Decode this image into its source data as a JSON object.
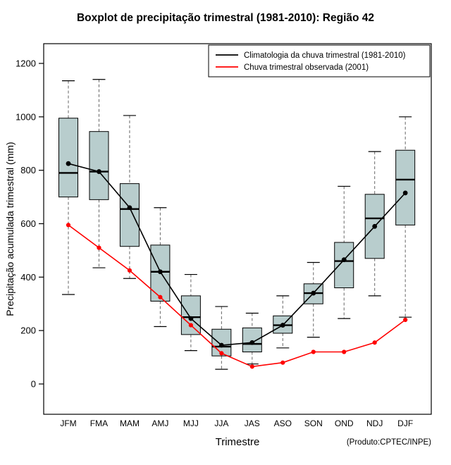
{
  "chart_data": {
    "type": "boxplot",
    "title": "Boxplot de precipitação trimestral (1981-2010): Região 42",
    "xlabel": "Trimestre",
    "ylabel": "Precipitação acumulada trimestral (mm)",
    "annotation": "(Produto:CPTEC/INPE)",
    "categories": [
      "JFM",
      "FMA",
      "MAM",
      "AMJ",
      "MJJ",
      "JJA",
      "JAS",
      "ASO",
      "SON",
      "OND",
      "NDJ",
      "DJF"
    ],
    "yticks": [
      0,
      200,
      400,
      600,
      800,
      1000,
      1200
    ],
    "ylim": [
      0,
      1200
    ],
    "grid": false,
    "legend_position": "top-right",
    "box_fill": "#b8cdcd",
    "box_border": "#000000",
    "whisker_color": "#666666",
    "boxes": [
      {
        "low": 335,
        "q1": 700,
        "median": 790,
        "q3": 995,
        "high": 1135
      },
      {
        "low": 435,
        "q1": 690,
        "median": 795,
        "q3": 945,
        "high": 1140
      },
      {
        "low": 395,
        "q1": 515,
        "median": 655,
        "q3": 750,
        "high": 1005
      },
      {
        "low": 215,
        "q1": 310,
        "median": 420,
        "q3": 520,
        "high": 660
      },
      {
        "low": 125,
        "q1": 185,
        "median": 250,
        "q3": 330,
        "high": 410
      },
      {
        "low": 55,
        "q1": 105,
        "median": 140,
        "q3": 205,
        "high": 290
      },
      {
        "low": 75,
        "q1": 120,
        "median": 150,
        "q3": 210,
        "high": 265
      },
      {
        "low": 135,
        "q1": 190,
        "median": 220,
        "q3": 255,
        "high": 330
      },
      {
        "low": 175,
        "q1": 300,
        "median": 340,
        "q3": 375,
        "high": 455
      },
      {
        "low": 245,
        "q1": 360,
        "median": 460,
        "q3": 530,
        "high": 740
      },
      {
        "low": 330,
        "q1": 470,
        "median": 620,
        "q3": 710,
        "high": 870
      },
      {
        "low": 250,
        "q1": 595,
        "median": 765,
        "q3": 875,
        "high": 1000
      }
    ],
    "series": [
      {
        "name": "Climatologia da chuva trimestral (1981-2010)",
        "color": "#000000",
        "values": [
          825,
          795,
          660,
          420,
          245,
          145,
          155,
          220,
          340,
          465,
          590,
          715
        ]
      },
      {
        "name": "Chuva trimestral observada (2001)",
        "color": "#ff0000",
        "values": [
          595,
          510,
          425,
          325,
          220,
          115,
          65,
          80,
          120,
          120,
          155,
          240
        ]
      }
    ]
  }
}
